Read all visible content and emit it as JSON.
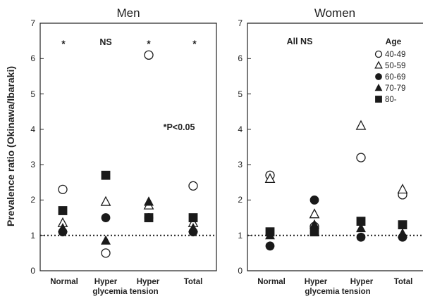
{
  "chart_data": [
    {
      "type": "scatter",
      "title": "Men",
      "annotation": "NS",
      "note": "*P<0.05",
      "ylabel": "Prevalence ratio  (Okinawa/Ibaraki)",
      "ylim": [
        0,
        7
      ],
      "yticks": [
        "0",
        "1",
        "2",
        "3",
        "4",
        "5",
        "6",
        "7"
      ],
      "reference_line": 1,
      "categories": [
        "Normal",
        "Hyper",
        "Hyper",
        "Total"
      ],
      "category_sublabel": "glycemia tension",
      "significance": [
        "*",
        "",
        "*",
        "*"
      ],
      "series": [
        {
          "name": "40-49",
          "marker": "circle-open",
          "values": [
            2.3,
            0.5,
            6.1,
            2.4
          ]
        },
        {
          "name": "50-59",
          "marker": "triangle-open",
          "values": [
            1.35,
            1.95,
            1.85,
            1.35
          ]
        },
        {
          "name": "60-69",
          "marker": "circle-filled",
          "values": [
            1.1,
            1.5,
            1.5,
            1.1
          ]
        },
        {
          "name": "70-79",
          "marker": "triangle-filled",
          "values": [
            1.2,
            0.85,
            1.95,
            1.2
          ]
        },
        {
          "name": "80-",
          "marker": "square-filled",
          "values": [
            1.7,
            2.7,
            1.5,
            1.5
          ]
        }
      ]
    },
    {
      "type": "scatter",
      "title": "Women",
      "annotation": "All NS",
      "legend_title": "Age",
      "legend_position": "top-right",
      "ylim": [
        0,
        7
      ],
      "yticks": [
        "0",
        "1",
        "2",
        "3",
        "4",
        "5",
        "6",
        "7"
      ],
      "reference_line": 1,
      "categories": [
        "Normal",
        "Hyper",
        "Hyper",
        "Total"
      ],
      "category_sublabel": "glycemia tension",
      "series": [
        {
          "name": "40-49",
          "marker": "circle-open",
          "values": [
            2.7,
            1.25,
            3.2,
            2.15
          ]
        },
        {
          "name": "50-59",
          "marker": "triangle-open",
          "values": [
            2.6,
            1.6,
            4.1,
            2.3
          ]
        },
        {
          "name": "60-69",
          "marker": "circle-filled",
          "values": [
            0.7,
            2.0,
            0.95,
            0.95
          ]
        },
        {
          "name": "70-79",
          "marker": "triangle-filled",
          "values": [
            1.0,
            1.3,
            1.2,
            1.05
          ]
        },
        {
          "name": "80-",
          "marker": "square-filled",
          "values": [
            1.1,
            1.1,
            1.4,
            1.3
          ]
        }
      ]
    }
  ]
}
